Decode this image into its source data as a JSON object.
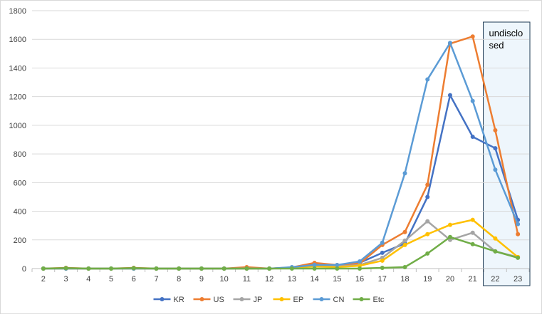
{
  "chart_data": {
    "type": "line",
    "title": "",
    "xlabel": "",
    "ylabel": "",
    "x": [
      "2",
      "3",
      "4",
      "5",
      "6",
      "7",
      "8",
      "9",
      "10",
      "11",
      "12",
      "13",
      "14",
      "15",
      "16",
      "17",
      "18",
      "19",
      "20",
      "21",
      "22",
      "23"
    ],
    "ylim": [
      0,
      1800
    ],
    "yticks": [
      0,
      200,
      400,
      600,
      800,
      1000,
      1200,
      1400,
      1600,
      1800
    ],
    "grid": "horizontal",
    "legend_position": "bottom",
    "series": [
      {
        "name": "KR",
        "color": "#4472c4",
        "values": [
          0,
          0,
          0,
          0,
          0,
          0,
          0,
          0,
          0,
          3,
          0,
          5,
          30,
          20,
          40,
          110,
          175,
          500,
          1210,
          920,
          840,
          340
        ]
      },
      {
        "name": "US",
        "color": "#ed7d31",
        "values": [
          0,
          5,
          0,
          0,
          5,
          0,
          0,
          0,
          0,
          10,
          0,
          8,
          40,
          25,
          35,
          165,
          255,
          585,
          1570,
          1620,
          965,
          240
        ]
      },
      {
        "name": "JP",
        "color": "#a5a5a5",
        "values": [
          0,
          0,
          0,
          0,
          0,
          0,
          0,
          0,
          0,
          0,
          0,
          5,
          20,
          15,
          25,
          75,
          195,
          330,
          200,
          250,
          120,
          80
        ]
      },
      {
        "name": "EP",
        "color": "#ffc000",
        "values": [
          0,
          0,
          0,
          0,
          0,
          0,
          0,
          0,
          0,
          0,
          0,
          5,
          15,
          10,
          20,
          55,
          165,
          240,
          305,
          340,
          210,
          80
        ]
      },
      {
        "name": "CN",
        "color": "#5b9bd5",
        "values": [
          0,
          0,
          0,
          0,
          0,
          0,
          0,
          0,
          0,
          0,
          0,
          10,
          25,
          25,
          50,
          180,
          665,
          1320,
          1575,
          1170,
          690,
          310
        ]
      },
      {
        "name": "Etc",
        "color": "#70ad47",
        "values": [
          0,
          3,
          0,
          0,
          3,
          0,
          0,
          0,
          0,
          0,
          0,
          0,
          0,
          0,
          0,
          5,
          10,
          105,
          220,
          170,
          120,
          75
        ]
      }
    ],
    "annotation": {
      "text_line1": "undisclo",
      "text_line2": "sed",
      "x_from": "22",
      "x_to": "23"
    }
  }
}
